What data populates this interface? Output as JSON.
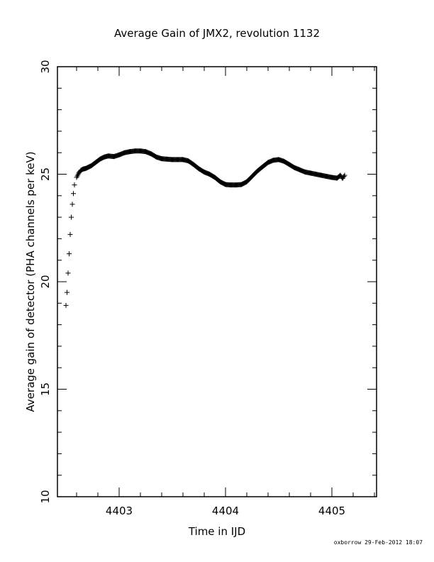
{
  "chart_data": {
    "type": "scatter",
    "title": "Average Gain of JMX2, revolution 1132",
    "xlabel": "Time in IJD",
    "ylabel": "Average gain of detector (PHA channels per keV)",
    "xlim": [
      4402.42,
      4405.42
    ],
    "ylim": [
      10,
      30
    ],
    "x_ticks": [
      4403,
      4404,
      4405
    ],
    "x_tick_labels": [
      "4403",
      "4404",
      "4405"
    ],
    "y_ticks": [
      10,
      15,
      20,
      25,
      30
    ],
    "y_tick_labels": [
      "10",
      "15",
      "20",
      "25",
      "30"
    ],
    "x_minor_step": 0.2,
    "y_minor_step": 1,
    "grid": false,
    "legend": "none",
    "marker": "plus",
    "color": "#000000",
    "series": [
      {
        "x": [
          4402.5,
          4402.51,
          4402.52,
          4402.53,
          4402.54,
          4402.55,
          4402.56,
          4402.57,
          4402.58,
          4402.6,
          4402.62,
          4402.64,
          4402.66,
          4402.68,
          4402.7,
          4402.74,
          4402.78,
          4402.82,
          4402.86,
          4402.9,
          4402.95,
          4403.0,
          4403.05,
          4403.1,
          4403.15,
          4403.2,
          4403.25,
          4403.3,
          4403.35,
          4403.4,
          4403.45,
          4403.5,
          4403.55,
          4403.6,
          4403.65,
          4403.7,
          4403.75,
          4403.8,
          4403.85,
          4403.9,
          4403.95,
          4404.0,
          4404.05,
          4404.1,
          4404.15,
          4404.2,
          4404.25,
          4404.3,
          4404.35,
          4404.4,
          4404.45,
          4404.5,
          4404.55,
          4404.6,
          4404.65,
          4404.7,
          4404.75,
          4404.8,
          4404.85,
          4404.9,
          4404.95,
          4405.0,
          4405.05,
          4405.08,
          4405.1,
          4405.12
        ],
        "y": [
          18.9,
          19.5,
          20.4,
          21.3,
          22.2,
          23.0,
          23.6,
          24.1,
          24.5,
          24.85,
          25.05,
          25.18,
          25.24,
          25.26,
          25.3,
          25.4,
          25.55,
          25.7,
          25.8,
          25.85,
          25.82,
          25.9,
          26.0,
          26.05,
          26.08,
          26.08,
          26.05,
          25.95,
          25.8,
          25.72,
          25.7,
          25.68,
          25.68,
          25.68,
          25.62,
          25.45,
          25.25,
          25.1,
          25.0,
          24.85,
          24.65,
          24.52,
          24.5,
          24.5,
          24.52,
          24.65,
          24.9,
          25.15,
          25.35,
          25.55,
          25.65,
          25.68,
          25.6,
          25.45,
          25.3,
          25.2,
          25.1,
          25.05,
          25.0,
          24.95,
          24.9,
          24.85,
          24.82,
          24.95,
          24.8,
          24.95
        ]
      }
    ]
  },
  "footer_text": "oxborrow 29-Feb-2012 18:07"
}
